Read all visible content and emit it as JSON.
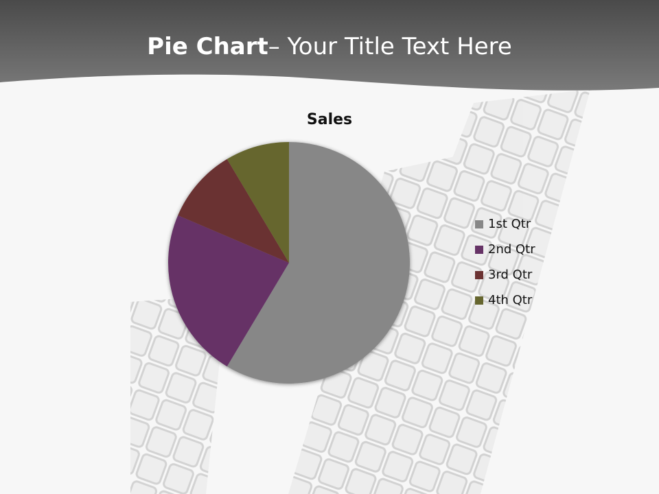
{
  "slide": {
    "title_bold": "Pie Chart",
    "title_rest": "– Your Title Text Here"
  },
  "chart_data": {
    "type": "pie",
    "title": "Sales",
    "categories": [
      "1st Qtr",
      "2nd Qtr",
      "3rd Qtr",
      "4th Qtr"
    ],
    "values": [
      8.2,
      3.2,
      1.4,
      1.2
    ],
    "colors": [
      "#878787",
      "#663366",
      "#6b3232",
      "#66662f"
    ],
    "legend_position": "right"
  }
}
